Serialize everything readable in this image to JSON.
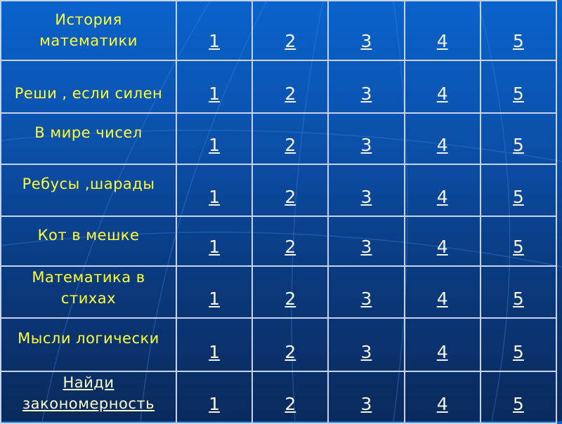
{
  "colors": {
    "category_text": "#ffff33",
    "link_text": "#f4f4e0",
    "background_top": "#0a63cc",
    "background_bottom": "#0a2a5c"
  },
  "rows": [
    {
      "category": "История математики",
      "values": [
        "1",
        "2",
        "3",
        "4",
        "5"
      ]
    },
    {
      "category": "Реши , если силен",
      "values": [
        "1",
        "2",
        "3",
        "4",
        "5"
      ]
    },
    {
      "category": "В мире чисел",
      "values": [
        "1",
        "2",
        "3",
        "4",
        "5"
      ]
    },
    {
      "category": "Ребусы ,шарады",
      "values": [
        "1",
        "2",
        "3",
        "4",
        "5"
      ]
    },
    {
      "category": "Кот в мешке",
      "values": [
        "1",
        "2",
        "3",
        "4",
        "5"
      ]
    },
    {
      "category": "Математика в стихах",
      "values": [
        "1",
        "2",
        "3",
        "4",
        "5"
      ]
    },
    {
      "category": "Мысли логически",
      "values": [
        "1",
        "2",
        "3",
        "4",
        "5"
      ]
    },
    {
      "category": "Найди закономерность",
      "values": [
        "1",
        "2",
        "3",
        "4",
        "5"
      ],
      "category_is_link": true
    }
  ]
}
